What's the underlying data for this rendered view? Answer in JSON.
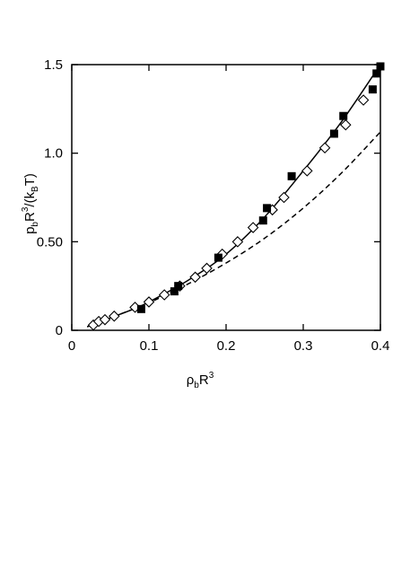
{
  "chart_data": {
    "type": "scatter",
    "xlabel": {
      "rho": "ρ",
      "rho_sub": "b",
      "R": "R",
      "R_sup": "3"
    },
    "ylabel": {
      "p": "p",
      "p_sub": "b",
      "R": "R",
      "R_sup": "3",
      "slash": "/(k",
      "k_sub": "B",
      "T": "T)"
    },
    "xlim": [
      0,
      0.4
    ],
    "ylim": [
      0,
      1.5
    ],
    "xticks": [
      0,
      0.1,
      0.2,
      0.3,
      0.4
    ],
    "xtick_labels": [
      "0",
      "0.1",
      "0.2",
      "0.3",
      "0.4"
    ],
    "yticks": [
      0,
      0.5,
      1.0,
      1.5
    ],
    "ytick_labels": [
      "0",
      "0.50",
      "1.0",
      "1.5"
    ],
    "grid": false,
    "series": [
      {
        "marker": "open-diamond",
        "x": [
          0.028,
          0.035,
          0.043,
          0.055,
          0.082,
          0.1,
          0.12,
          0.14,
          0.16,
          0.175,
          0.195,
          0.215,
          0.235,
          0.26,
          0.275,
          0.305,
          0.328,
          0.355,
          0.378
        ],
        "y": [
          0.03,
          0.05,
          0.06,
          0.08,
          0.13,
          0.16,
          0.2,
          0.25,
          0.3,
          0.35,
          0.43,
          0.5,
          0.58,
          0.68,
          0.75,
          0.9,
          1.03,
          1.16,
          1.3
        ]
      },
      {
        "marker": "filled-square",
        "x": [
          0.09,
          0.133,
          0.138,
          0.19,
          0.248,
          0.253,
          0.285,
          0.34,
          0.352,
          0.39,
          0.395,
          0.4
        ],
        "y": [
          0.12,
          0.22,
          0.25,
          0.41,
          0.62,
          0.69,
          0.87,
          1.11,
          1.21,
          1.36,
          1.45,
          1.49
        ]
      },
      {
        "style": "solid-line",
        "x": [
          0.02,
          0.05,
          0.08,
          0.1,
          0.15,
          0.2,
          0.25,
          0.3,
          0.35,
          0.4
        ],
        "y": [
          0.02,
          0.07,
          0.12,
          0.16,
          0.28,
          0.43,
          0.64,
          0.9,
          1.18,
          1.5
        ]
      },
      {
        "style": "dashed-line",
        "x": [
          0.02,
          0.05,
          0.08,
          0.1,
          0.15,
          0.2,
          0.25,
          0.3,
          0.35,
          0.4
        ],
        "y": [
          0.02,
          0.07,
          0.12,
          0.155,
          0.26,
          0.38,
          0.52,
          0.69,
          0.89,
          1.12
        ]
      }
    ]
  }
}
